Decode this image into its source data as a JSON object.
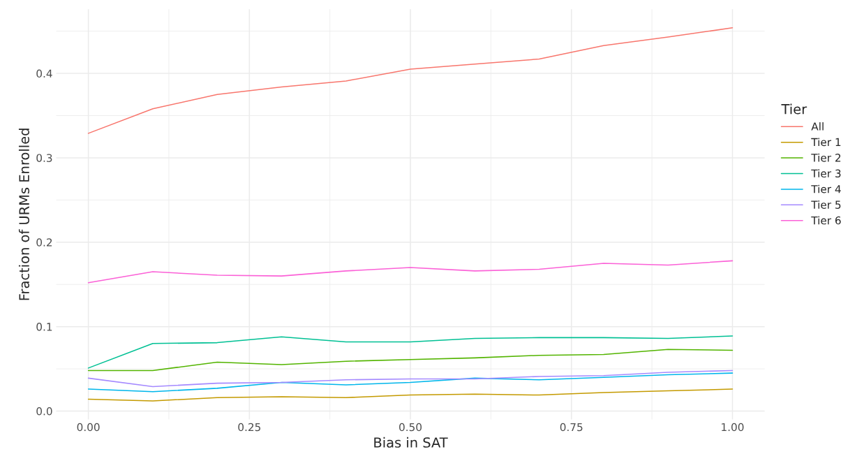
{
  "chart_data": {
    "type": "line",
    "xlabel": "Bias in SAT",
    "ylabel": "Fraction of URMs Enrolled",
    "legend_title": "Tier",
    "x": [
      0,
      0.1,
      0.2,
      0.3,
      0.4,
      0.5,
      0.6,
      0.7,
      0.8,
      0.9,
      1.0
    ],
    "series": [
      {
        "name": "All",
        "color": "#f8766d",
        "values": [
          0.329,
          0.358,
          0.375,
          0.384,
          0.391,
          0.405,
          0.411,
          0.417,
          0.433,
          0.443,
          0.454
        ]
      },
      {
        "name": "Tier 1",
        "color": "#c49a00",
        "values": [
          0.014,
          0.012,
          0.016,
          0.017,
          0.016,
          0.019,
          0.02,
          0.019,
          0.022,
          0.024,
          0.026
        ]
      },
      {
        "name": "Tier 2",
        "color": "#53b400",
        "values": [
          0.048,
          0.048,
          0.058,
          0.055,
          0.059,
          0.061,
          0.063,
          0.066,
          0.067,
          0.073,
          0.072
        ]
      },
      {
        "name": "Tier 3",
        "color": "#00c094",
        "values": [
          0.051,
          0.08,
          0.081,
          0.088,
          0.082,
          0.082,
          0.086,
          0.087,
          0.087,
          0.086,
          0.089
        ]
      },
      {
        "name": "Tier 4",
        "color": "#00b6eb",
        "values": [
          0.026,
          0.023,
          0.027,
          0.034,
          0.031,
          0.034,
          0.039,
          0.037,
          0.04,
          0.043,
          0.045
        ]
      },
      {
        "name": "Tier 5",
        "color": "#a58aff",
        "values": [
          0.039,
          0.029,
          0.033,
          0.034,
          0.037,
          0.038,
          0.038,
          0.041,
          0.042,
          0.046,
          0.048
        ]
      },
      {
        "name": "Tier 6",
        "color": "#fb61d7",
        "values": [
          0.152,
          0.165,
          0.161,
          0.16,
          0.166,
          0.17,
          0.166,
          0.168,
          0.175,
          0.173,
          0.178
        ]
      }
    ],
    "xlim": [
      -0.05,
      1.05
    ],
    "xticks": [
      {
        "value": 0,
        "label": "0.00"
      },
      {
        "value": 0.25,
        "label": "0.25"
      },
      {
        "value": 0.5,
        "label": "0.50"
      },
      {
        "value": 0.75,
        "label": "0.75"
      },
      {
        "value": 1.0,
        "label": "1.00"
      }
    ],
    "ylim": [
      -0.01,
      0.476
    ],
    "yticks": [
      {
        "value": 0,
        "label": "0.0"
      },
      {
        "value": 0.1,
        "label": "0.1"
      },
      {
        "value": 0.2,
        "label": "0.2"
      },
      {
        "value": 0.3,
        "label": "0.3"
      },
      {
        "value": 0.4,
        "label": "0.4"
      }
    ],
    "grid": true,
    "legend": "right",
    "marker": "none",
    "line_style": "solid"
  }
}
